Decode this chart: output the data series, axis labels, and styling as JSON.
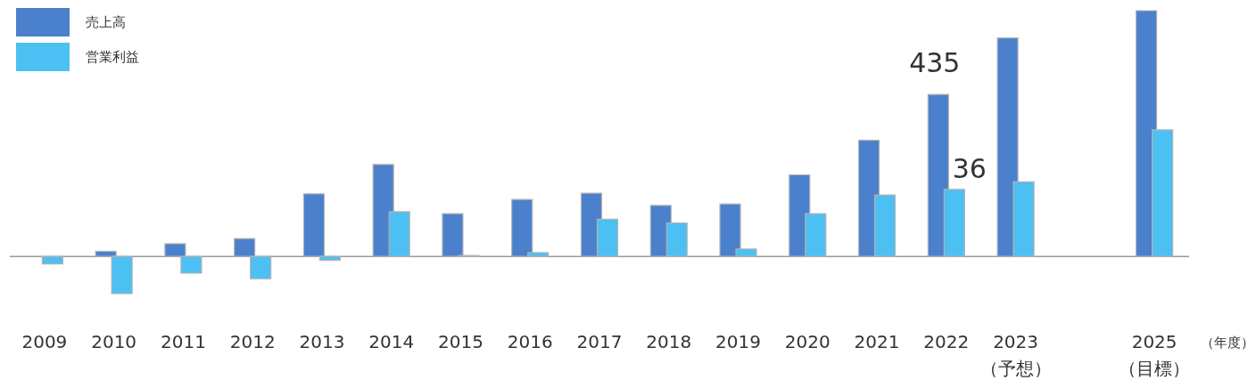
{
  "chart_data": {
    "type": "bar",
    "legend": "top left",
    "xlabel": "（年度）",
    "tick_labels": "x",
    "categories": [
      "2009",
      "2010",
      "2011",
      "2012",
      "2013",
      "2014",
      "2015",
      "2016",
      "2017",
      "2018",
      "2019",
      "2020",
      "2021",
      "2022",
      "2023\n（予想）",
      null,
      "2025\n（目標）"
    ],
    "ylim": [
      -100,
      660
    ],
    "y2lim": [
      -20,
      132
    ],
    "series": [
      {
        "name": "売上高",
        "color": "#4a80cc",
        "values": [
          null,
          14,
          34,
          48,
          168,
          247,
          115,
          153,
          170,
          137,
          141,
          219,
          312,
          435,
          587,
          null,
          660
        ],
        "value_labels": [
          null,
          null,
          null,
          null,
          null,
          null,
          null,
          null,
          null,
          null,
          null,
          null,
          null,
          "435",
          null,
          null,
          null
        ]
      },
      {
        "name": "営業利益",
        "color": "#4cc0f2",
        "axis": "y2",
        "values": [
          -4,
          -20,
          -9,
          -12,
          -2,
          24,
          0.5,
          2,
          20,
          18,
          4,
          23,
          33,
          36,
          40,
          null,
          68
        ],
        "value_labels": [
          null,
          null,
          null,
          null,
          null,
          null,
          null,
          null,
          null,
          null,
          null,
          null,
          null,
          "36",
          null,
          null,
          null
        ]
      }
    ]
  }
}
